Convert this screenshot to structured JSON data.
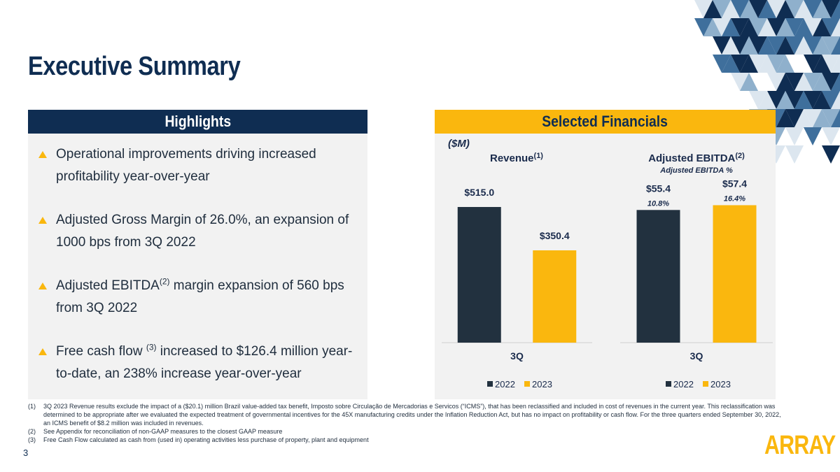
{
  "page": {
    "title": "Executive Summary",
    "page_number": "3",
    "logo_text": "ARRAY"
  },
  "highlights": {
    "header": "Highlights",
    "bullets": [
      {
        "before": "Operational improvements driving increased profitability year-over-year",
        "sup": "",
        "after": ""
      },
      {
        "before": "Adjusted Gross Margin of 26.0%, an expansion of 1000 bps from 3Q 2022",
        "sup": "",
        "after": ""
      },
      {
        "before": "Adjusted EBITDA",
        "sup": "(2)",
        "after": " margin expansion of 560 bps from 3Q 2022"
      },
      {
        "before": "Free cash flow ",
        "sup": "(3)",
        "after": " increased to $126.4 million year-to-date, an 238% increase year-over-year"
      }
    ]
  },
  "financials": {
    "header": "Selected Financials",
    "units": "($M)"
  },
  "chart_data": [
    {
      "type": "bar",
      "title": "Revenue",
      "title_sup": "(1)",
      "categories": [
        "3Q"
      ],
      "series": [
        {
          "name": "2022",
          "values": [
            515.0
          ],
          "labels": [
            "$515.0"
          ],
          "color": "#22313f"
        },
        {
          "name": "2023",
          "values": [
            350.4
          ],
          "labels": [
            "$350.4"
          ],
          "color": "#fab70e"
        }
      ],
      "ylim": [
        0,
        600
      ],
      "legend": "bottom"
    },
    {
      "type": "bar",
      "title": "Adjusted EBITDA",
      "title_sup": "(2)",
      "subtitle": "Adjusted EBITDA %",
      "categories": [
        "3Q"
      ],
      "series": [
        {
          "name": "2022",
          "values": [
            55.4
          ],
          "labels": [
            "$55.4"
          ],
          "pct": [
            "10.8%"
          ],
          "color": "#22313f"
        },
        {
          "name": "2023",
          "values": [
            57.4
          ],
          "labels": [
            "$57.4"
          ],
          "pct": [
            "16.4%"
          ],
          "color": "#fab70e"
        }
      ],
      "ylim": [
        0,
        66
      ],
      "legend": "bottom"
    }
  ],
  "footnotes": [
    {
      "num": "(1)",
      "text": "3Q 2023 Revenue results exclude the impact of a ($20.1) million Brazil value-added tax benefit, Imposto sobre Circulação de Mercadorias e Servicos (“ICMS”), that has been reclassified and included in cost of revenues in the current year. This reclassification was determined to be appropriate after we evaluated the expected treatment of governmental incentives for the 45X manufacturing credits under the Inflation Reduction Act, but has no impact on profitability or cash flow. For the three quarters ended September 30, 2022, an ICMS benefit of $8.2 million was included in revenues."
    },
    {
      "num": "(2)",
      "text": "See Appendix for reconciliation of non-GAAP measures to the closest GAAP measure"
    },
    {
      "num": "(3)",
      "text": "Free Cash Flow calculated as cash from (used in) operating activities less purchase of property, plant and equipment"
    }
  ],
  "colors": {
    "navy": "#0f2d52",
    "gold": "#fab70e",
    "bar_dark": "#22313f",
    "panel_bg": "#f2f2f2"
  }
}
